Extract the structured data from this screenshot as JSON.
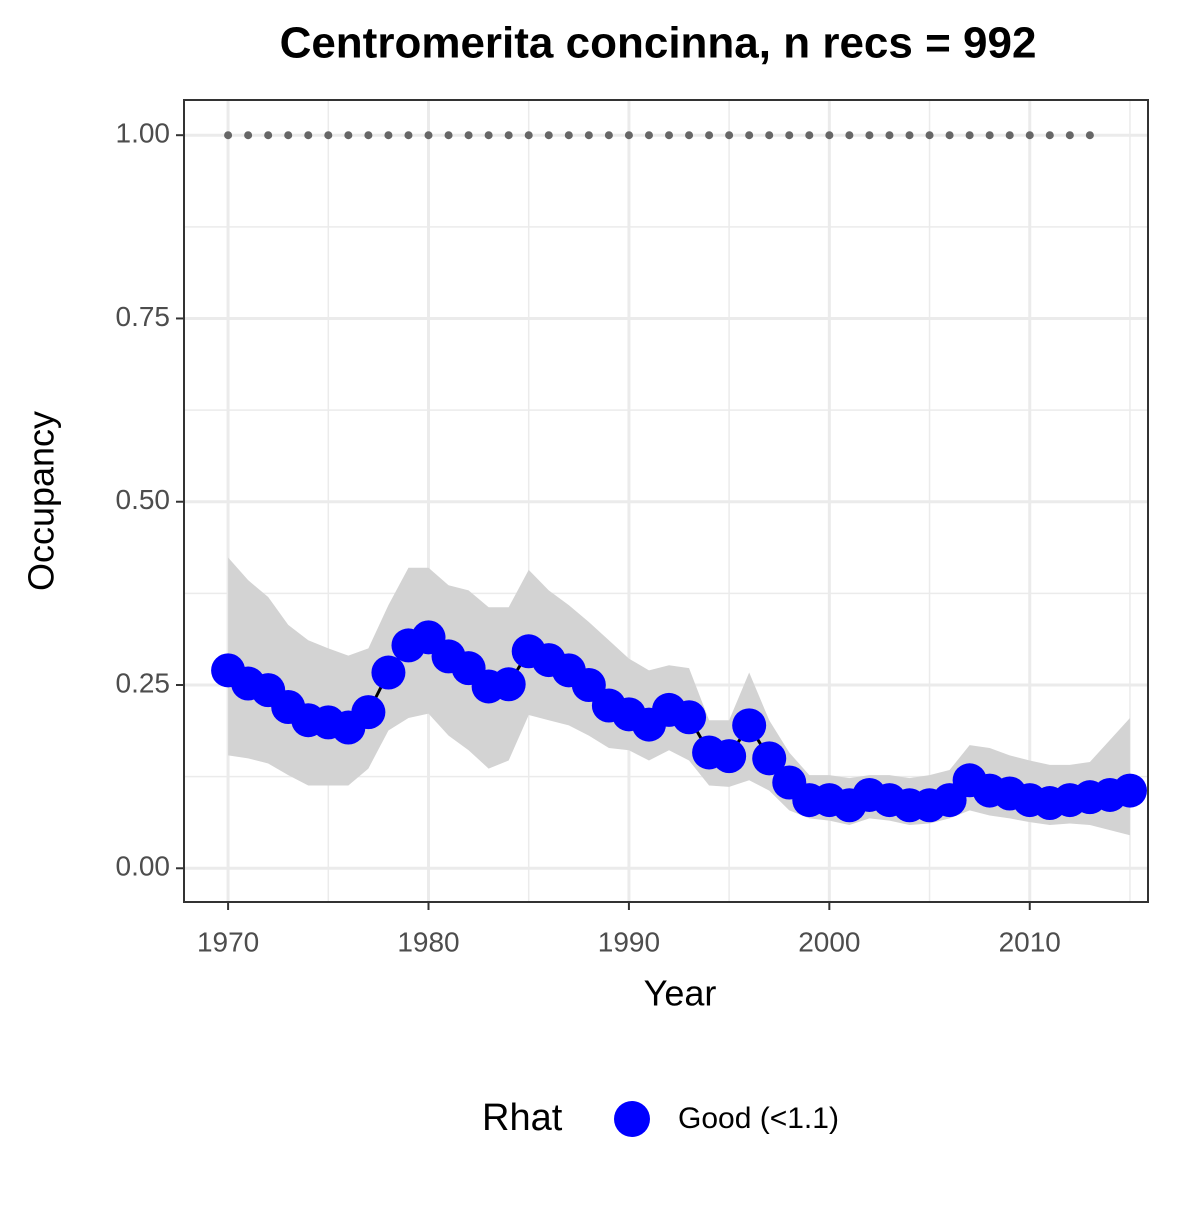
{
  "chart_data": {
    "type": "line",
    "title": "Centromerita concinna, n recs = 992",
    "x_label": "Year",
    "y_label": "Occupancy",
    "legend_title": "Rhat",
    "legend_position": "bottom",
    "x": [
      1970,
      1971,
      1972,
      1973,
      1974,
      1975,
      1976,
      1977,
      1978,
      1979,
      1980,
      1981,
      1982,
      1983,
      1984,
      1985,
      1986,
      1987,
      1988,
      1989,
      1990,
      1991,
      1992,
      1993,
      1994,
      1995,
      1996,
      1997,
      1998,
      1999,
      2000,
      2001,
      2002,
      2003,
      2004,
      2005,
      2006,
      2007,
      2008,
      2009,
      2010,
      2011,
      2012,
      2013,
      2014,
      2015
    ],
    "series": [
      {
        "name": "Good (<1.1)",
        "color": "#0000ff",
        "line_color": "#000000",
        "values": [
          0.27,
          0.252,
          0.243,
          0.22,
          0.202,
          0.199,
          0.192,
          0.213,
          0.267,
          0.304,
          0.315,
          0.289,
          0.273,
          0.248,
          0.251,
          0.296,
          0.284,
          0.27,
          0.25,
          0.222,
          0.21,
          0.196,
          0.216,
          0.206,
          0.158,
          0.153,
          0.195,
          0.15,
          0.117,
          0.093,
          0.093,
          0.086,
          0.1,
          0.093,
          0.086,
          0.086,
          0.093,
          0.12,
          0.106,
          0.102,
          0.093,
          0.089,
          0.093,
          0.097,
          0.1,
          0.106
        ],
        "upper": [
          0.424,
          0.393,
          0.37,
          0.332,
          0.311,
          0.3,
          0.29,
          0.3,
          0.359,
          0.41,
          0.41,
          0.386,
          0.379,
          0.356,
          0.356,
          0.407,
          0.379,
          0.359,
          0.336,
          0.311,
          0.286,
          0.27,
          0.277,
          0.273,
          0.202,
          0.202,
          0.267,
          0.202,
          0.158,
          0.127,
          0.127,
          0.123,
          0.127,
          0.127,
          0.123,
          0.127,
          0.134,
          0.168,
          0.164,
          0.154,
          0.147,
          0.141,
          0.141,
          0.145,
          0.175,
          0.205
        ],
        "lower": [
          0.154,
          0.15,
          0.143,
          0.127,
          0.113,
          0.113,
          0.113,
          0.136,
          0.188,
          0.205,
          0.211,
          0.181,
          0.161,
          0.136,
          0.147,
          0.209,
          0.202,
          0.195,
          0.181,
          0.164,
          0.161,
          0.147,
          0.161,
          0.147,
          0.113,
          0.111,
          0.12,
          0.106,
          0.079,
          0.068,
          0.065,
          0.059,
          0.068,
          0.065,
          0.059,
          0.061,
          0.068,
          0.079,
          0.072,
          0.068,
          0.063,
          0.059,
          0.061,
          0.059,
          0.052,
          0.045
        ],
        "band_color": "#d3d3d3"
      }
    ],
    "dots": {
      "color": "#666666",
      "x": [
        1970,
        1971,
        1972,
        1973,
        1974,
        1975,
        1976,
        1977,
        1978,
        1979,
        1980,
        1981,
        1982,
        1983,
        1984,
        1985,
        1986,
        1987,
        1988,
        1989,
        1990,
        1991,
        1992,
        1993,
        1994,
        1995,
        1996,
        1997,
        1998,
        1999,
        2000,
        2001,
        2002,
        2003,
        2004,
        2005,
        2006,
        2007,
        2008,
        2009,
        2010,
        2011,
        2012,
        2013
      ],
      "values": [
        1,
        1,
        1,
        1,
        1,
        1,
        1,
        1,
        1,
        1,
        1,
        1,
        1,
        1,
        1,
        1,
        1,
        1,
        1,
        1,
        1,
        1,
        1,
        1,
        1,
        1,
        1,
        1,
        1,
        1,
        1,
        1,
        1,
        1,
        1,
        1,
        1,
        1,
        1,
        1,
        1,
        1,
        1,
        1
      ]
    },
    "xlim": [
      1967.8,
      2015.9
    ],
    "ylim": [
      -0.046,
      1.048
    ],
    "xticks": [
      1970,
      1980,
      1990,
      2000,
      2010
    ],
    "yticks": [
      {
        "value": 0,
        "label": "0.00"
      },
      {
        "value": 0.25,
        "label": "0.25"
      },
      {
        "value": 0.5,
        "label": "0.50"
      },
      {
        "value": 0.75,
        "label": "0.75"
      },
      {
        "value": 1,
        "label": "1.00"
      }
    ],
    "x_minor_grid": [
      1975,
      1985,
      1995,
      2005,
      2015
    ],
    "y_minor_grid": [
      0.125,
      0.375,
      0.625,
      0.875
    ],
    "grid": true
  }
}
